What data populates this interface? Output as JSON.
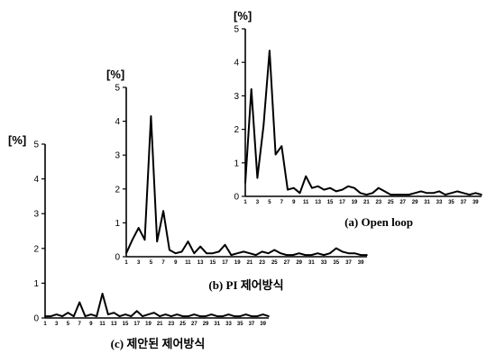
{
  "chart_data": [
    {
      "type": "line",
      "caption": "(a) Open loop",
      "unit_label": "[%]",
      "ylim": [
        0,
        5
      ],
      "yticks": [
        0,
        1,
        2,
        3,
        4,
        5
      ],
      "xtick_labels": [
        "1",
        "3",
        "5",
        "7",
        "9",
        "11",
        "13",
        "15",
        "17",
        "19",
        "21",
        "23",
        "25",
        "27",
        "29",
        "31",
        "33",
        "35",
        "37",
        "39"
      ],
      "x": [
        1,
        2,
        3,
        4,
        5,
        6,
        7,
        8,
        9,
        10,
        11,
        12,
        13,
        14,
        15,
        16,
        17,
        18,
        19,
        20,
        21,
        22,
        23,
        24,
        25,
        26,
        27,
        28,
        29,
        30,
        31,
        32,
        33,
        34,
        35,
        36,
        37,
        38,
        39,
        40
      ],
      "values": [
        0.4,
        3.2,
        0.55,
        2.1,
        4.35,
        1.25,
        1.5,
        0.2,
        0.25,
        0.1,
        0.6,
        0.25,
        0.3,
        0.2,
        0.25,
        0.15,
        0.2,
        0.3,
        0.25,
        0.1,
        0.05,
        0.1,
        0.25,
        0.15,
        0.05,
        0.05,
        0.05,
        0.05,
        0.1,
        0.15,
        0.1,
        0.1,
        0.15,
        0.05,
        0.1,
        0.15,
        0.1,
        0.05,
        0.1,
        0.05
      ]
    },
    {
      "type": "line",
      "caption": "(b) PI 제어방식",
      "unit_label": "[%]",
      "ylim": [
        0,
        5
      ],
      "yticks": [
        0,
        1,
        2,
        3,
        4,
        5
      ],
      "xtick_labels": [
        "1",
        "3",
        "5",
        "7",
        "9",
        "11",
        "13",
        "15",
        "17",
        "19",
        "21",
        "23",
        "25",
        "27",
        "29",
        "31",
        "33",
        "35",
        "37",
        "39"
      ],
      "x": [
        1,
        2,
        3,
        4,
        5,
        6,
        7,
        8,
        9,
        10,
        11,
        12,
        13,
        14,
        15,
        16,
        17,
        18,
        19,
        20,
        21,
        22,
        23,
        24,
        25,
        26,
        27,
        28,
        29,
        30,
        31,
        32,
        33,
        34,
        35,
        36,
        37,
        38,
        39,
        40
      ],
      "values": [
        0.1,
        0.5,
        0.85,
        0.5,
        4.15,
        0.45,
        1.35,
        0.2,
        0.1,
        0.15,
        0.45,
        0.1,
        0.3,
        0.1,
        0.1,
        0.15,
        0.35,
        0.05,
        0.1,
        0.15,
        0.1,
        0.05,
        0.15,
        0.1,
        0.2,
        0.1,
        0.05,
        0.05,
        0.1,
        0.05,
        0.05,
        0.1,
        0.05,
        0.1,
        0.25,
        0.15,
        0.1,
        0.1,
        0.05,
        0.05
      ]
    },
    {
      "type": "line",
      "caption": "(c) 제안된 제어방식",
      "unit_label": "[%]",
      "ylim": [
        0,
        5
      ],
      "yticks": [
        0,
        1,
        2,
        3,
        4,
        5
      ],
      "xtick_labels": [
        "1",
        "3",
        "5",
        "7",
        "9",
        "11",
        "13",
        "15",
        "17",
        "19",
        "21",
        "23",
        "25",
        "27",
        "29",
        "31",
        "33",
        "35",
        "37",
        "39"
      ],
      "x": [
        1,
        2,
        3,
        4,
        5,
        6,
        7,
        8,
        9,
        10,
        11,
        12,
        13,
        14,
        15,
        16,
        17,
        18,
        19,
        20,
        21,
        22,
        23,
        24,
        25,
        26,
        27,
        28,
        29,
        30,
        31,
        32,
        33,
        34,
        35,
        36,
        37,
        38,
        39,
        40
      ],
      "values": [
        0.05,
        0.05,
        0.1,
        0.05,
        0.15,
        0.05,
        0.45,
        0.05,
        0.1,
        0.05,
        0.7,
        0.1,
        0.15,
        0.05,
        0.1,
        0.05,
        0.2,
        0.05,
        0.1,
        0.15,
        0.05,
        0.1,
        0.05,
        0.1,
        0.05,
        0.05,
        0.1,
        0.05,
        0.05,
        0.1,
        0.05,
        0.05,
        0.1,
        0.05,
        0.05,
        0.1,
        0.05,
        0.05,
        0.1,
        0.05
      ]
    }
  ]
}
